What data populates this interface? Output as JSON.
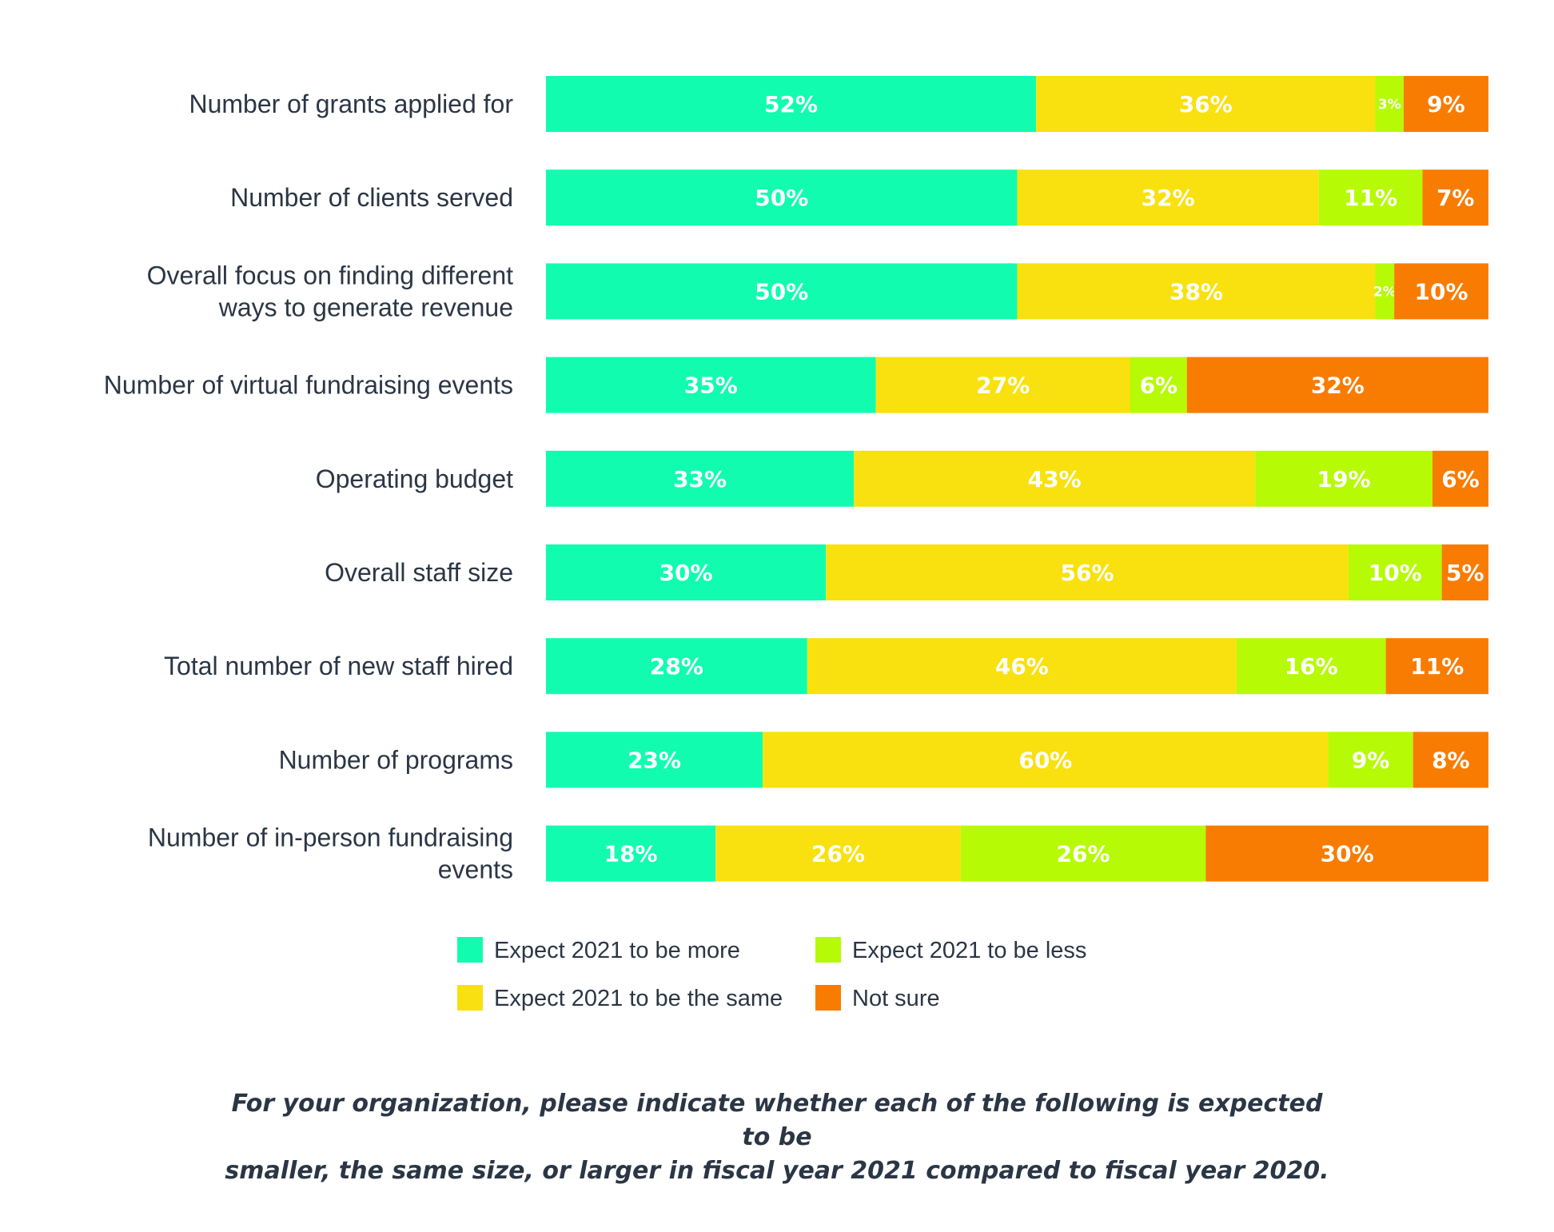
{
  "chart_data": {
    "type": "bar",
    "orientation": "horizontal",
    "stacked": true,
    "categories": [
      [
        "Number of grants applied for"
      ],
      [
        "Number of clients served"
      ],
      [
        "Overall focus on finding different",
        "ways to generate revenue"
      ],
      [
        "Number of virtual fundraising events"
      ],
      [
        "Operating budget"
      ],
      [
        "Overall staff size"
      ],
      [
        "Total number of new staff hired"
      ],
      [
        "Number of programs"
      ],
      [
        "Number of in-person fundraising",
        "events"
      ]
    ],
    "series": [
      {
        "name": "Expect 2021 to be more",
        "color": "#12fcb0",
        "values": [
          52,
          50,
          50,
          35,
          33,
          30,
          28,
          23,
          18
        ]
      },
      {
        "name": "Expect 2021 to be the same",
        "color": "#f8e10e",
        "values": [
          36,
          32,
          38,
          27,
          43,
          56,
          46,
          60,
          26
        ]
      },
      {
        "name": "Expect 2021 to be less",
        "color": "#b6fa06",
        "values": [
          3,
          11,
          2,
          6,
          19,
          10,
          16,
          9,
          26
        ]
      },
      {
        "name": "Not sure",
        "color": "#f97c02",
        "values": [
          9,
          7,
          10,
          32,
          6,
          5,
          11,
          8,
          30
        ]
      }
    ],
    "value_suffix": "%",
    "legend_position": "bottom",
    "grid": false,
    "caption": [
      "For your organization, please indicate whether each of the following is expected to be",
      "smaller, the same size, or larger in fiscal year 2021 compared to fiscal year 2020."
    ]
  }
}
